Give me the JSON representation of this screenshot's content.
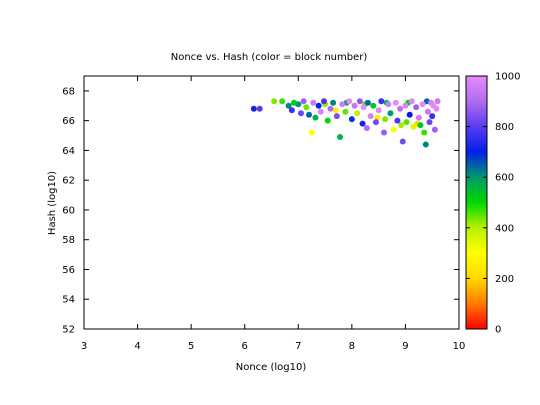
{
  "chart_data": {
    "type": "scatter",
    "title": "Nonce vs. Hash (color = block number)",
    "xlabel": "Nonce (log10)",
    "ylabel": "Hash (log10)",
    "xlim": [
      3,
      10
    ],
    "ylim": [
      52,
      69
    ],
    "xticks": [
      3,
      4,
      5,
      6,
      7,
      8,
      9,
      10
    ],
    "yticks": [
      52,
      54,
      56,
      58,
      60,
      62,
      64,
      66,
      68
    ],
    "grid": false,
    "colorbar": {
      "label": "block number",
      "range": [
        0,
        1000
      ],
      "ticks": [
        0,
        200,
        400,
        600,
        800,
        1000
      ],
      "palette": [
        "#ff0000",
        "#ff7a00",
        "#ffd800",
        "#ffff00",
        "#b8f000",
        "#00d800",
        "#009a6e",
        "#0020e8",
        "#5a3cf0",
        "#b06cf0",
        "#e78af8"
      ]
    },
    "series": [
      {
        "points": [
          {
            "x": 6.17,
            "y": 66.8,
            "c": 720
          },
          {
            "x": 6.28,
            "y": 66.8,
            "c": 800
          },
          {
            "x": 6.55,
            "y": 67.3,
            "c": 430
          },
          {
            "x": 6.7,
            "y": 67.3,
            "c": 470
          },
          {
            "x": 6.82,
            "y": 67.0,
            "c": 620
          },
          {
            "x": 6.88,
            "y": 66.7,
            "c": 760
          },
          {
            "x": 6.92,
            "y": 67.2,
            "c": 520
          },
          {
            "x": 7.0,
            "y": 67.1,
            "c": 600
          },
          {
            "x": 7.05,
            "y": 66.5,
            "c": 820
          },
          {
            "x": 7.1,
            "y": 67.3,
            "c": 880
          },
          {
            "x": 7.15,
            "y": 66.9,
            "c": 440
          },
          {
            "x": 7.2,
            "y": 66.4,
            "c": 650
          },
          {
            "x": 7.25,
            "y": 65.2,
            "c": 300
          },
          {
            "x": 7.28,
            "y": 67.2,
            "c": 950
          },
          {
            "x": 7.32,
            "y": 66.2,
            "c": 560
          },
          {
            "x": 7.38,
            "y": 67.0,
            "c": 700
          },
          {
            "x": 7.42,
            "y": 66.6,
            "c": 980
          },
          {
            "x": 7.48,
            "y": 67.3,
            "c": 780
          },
          {
            "x": 7.55,
            "y": 66.0,
            "c": 500
          },
          {
            "x": 7.6,
            "y": 66.8,
            "c": 900
          },
          {
            "x": 7.65,
            "y": 67.2,
            "c": 620
          },
          {
            "x": 7.72,
            "y": 66.3,
            "c": 840
          },
          {
            "x": 7.78,
            "y": 64.9,
            "c": 560
          },
          {
            "x": 7.82,
            "y": 67.1,
            "c": 960
          },
          {
            "x": 7.88,
            "y": 66.6,
            "c": 450
          },
          {
            "x": 7.95,
            "y": 67.3,
            "c": 990
          },
          {
            "x": 8.0,
            "y": 66.1,
            "c": 680
          },
          {
            "x": 8.05,
            "y": 67.0,
            "c": 940
          },
          {
            "x": 8.1,
            "y": 66.5,
            "c": 380
          },
          {
            "x": 8.15,
            "y": 67.3,
            "c": 860
          },
          {
            "x": 8.2,
            "y": 65.8,
            "c": 720
          },
          {
            "x": 8.22,
            "y": 66.9,
            "c": 1000
          },
          {
            "x": 8.28,
            "y": 65.5,
            "c": 910
          },
          {
            "x": 8.3,
            "y": 67.2,
            "c": 640
          },
          {
            "x": 8.35,
            "y": 66.3,
            "c": 970
          },
          {
            "x": 8.4,
            "y": 67.0,
            "c": 520
          },
          {
            "x": 8.45,
            "y": 65.9,
            "c": 830
          },
          {
            "x": 8.5,
            "y": 66.7,
            "c": 990
          },
          {
            "x": 8.55,
            "y": 67.3,
            "c": 760
          },
          {
            "x": 8.6,
            "y": 65.2,
            "c": 870
          },
          {
            "x": 8.62,
            "y": 66.1,
            "c": 430
          },
          {
            "x": 8.68,
            "y": 67.1,
            "c": 950
          },
          {
            "x": 8.72,
            "y": 66.5,
            "c": 600
          },
          {
            "x": 8.78,
            "y": 65.4,
            "c": 300
          },
          {
            "x": 8.82,
            "y": 67.2,
            "c": 1000
          },
          {
            "x": 8.85,
            "y": 66.0,
            "c": 780
          },
          {
            "x": 8.9,
            "y": 66.8,
            "c": 920
          },
          {
            "x": 8.95,
            "y": 64.6,
            "c": 830
          },
          {
            "x": 9.0,
            "y": 67.0,
            "c": 980
          },
          {
            "x": 9.02,
            "y": 65.9,
            "c": 450
          },
          {
            "x": 9.08,
            "y": 66.4,
            "c": 700
          },
          {
            "x": 9.12,
            "y": 67.3,
            "c": 990
          },
          {
            "x": 9.15,
            "y": 65.6,
            "c": 350
          },
          {
            "x": 9.2,
            "y": 66.9,
            "c": 880
          },
          {
            "x": 9.25,
            "y": 66.2,
            "c": 960
          },
          {
            "x": 9.28,
            "y": 65.7,
            "c": 520
          },
          {
            "x": 9.32,
            "y": 67.1,
            "c": 1000
          },
          {
            "x": 9.35,
            "y": 65.2,
            "c": 470
          },
          {
            "x": 9.38,
            "y": 64.4,
            "c": 620
          },
          {
            "x": 9.42,
            "y": 66.6,
            "c": 940
          },
          {
            "x": 9.45,
            "y": 65.9,
            "c": 820
          },
          {
            "x": 9.48,
            "y": 67.2,
            "c": 970
          },
          {
            "x": 9.5,
            "y": 66.3,
            "c": 760
          },
          {
            "x": 9.52,
            "y": 67.0,
            "c": 1000
          },
          {
            "x": 9.55,
            "y": 65.4,
            "c": 880
          },
          {
            "x": 9.58,
            "y": 66.8,
            "c": 990
          },
          {
            "x": 9.6,
            "y": 67.3,
            "c": 950
          },
          {
            "x": 7.5,
            "y": 67.1,
            "c": 420
          },
          {
            "x": 7.9,
            "y": 67.2,
            "c": 580
          },
          {
            "x": 8.25,
            "y": 67.1,
            "c": 460
          },
          {
            "x": 8.65,
            "y": 67.2,
            "c": 540
          },
          {
            "x": 9.05,
            "y": 67.2,
            "c": 500
          },
          {
            "x": 9.4,
            "y": 67.3,
            "c": 640
          },
          {
            "x": 8.48,
            "y": 66.2,
            "c": 250
          },
          {
            "x": 9.22,
            "y": 65.8,
            "c": 200
          },
          {
            "x": 8.92,
            "y": 65.7,
            "c": 410
          },
          {
            "x": 7.7,
            "y": 66.7,
            "c": 260
          }
        ]
      }
    ]
  }
}
